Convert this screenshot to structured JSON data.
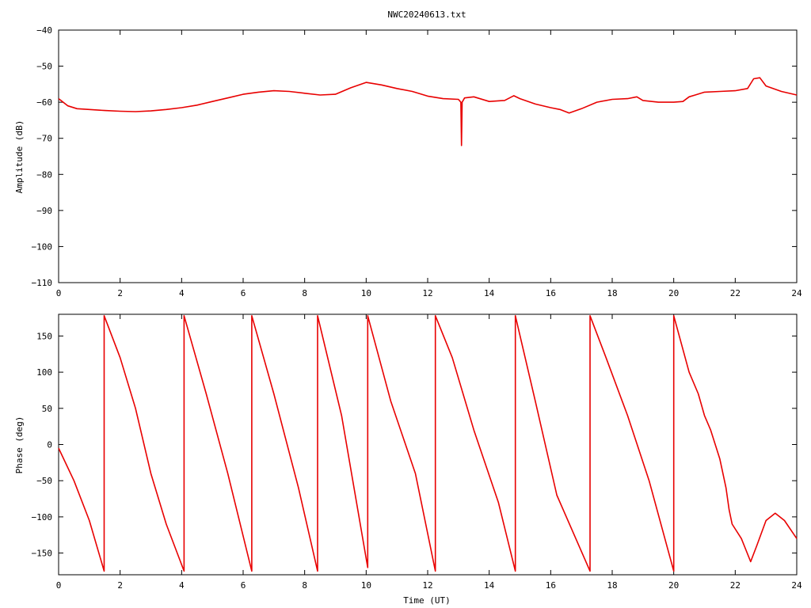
{
  "colors": {
    "trace": "#e80000",
    "frame": "#000000",
    "background": "#ffffff"
  },
  "chart_data": [
    {
      "type": "line",
      "title": "NWC20240613.txt",
      "xlabel": "",
      "ylabel": "Amplitude (dB)",
      "xlim": [
        0,
        24
      ],
      "ylim": [
        -110,
        -40
      ],
      "xticks": [
        0,
        2,
        4,
        6,
        8,
        10,
        12,
        14,
        16,
        18,
        20,
        22,
        24
      ],
      "yticks": [
        -40,
        -50,
        -60,
        -70,
        -80,
        -90,
        -100,
        -110
      ],
      "grid": false,
      "legend": "none",
      "series": [
        {
          "x": [
            0,
            0.3,
            0.6,
            1.0,
            1.5,
            2.0,
            2.5,
            3.0,
            3.5,
            4.0,
            4.5,
            5.0,
            5.5,
            6.0,
            6.5,
            7.0,
            7.5,
            8.0,
            8.5,
            9.0,
            9.5,
            10.0,
            10.5,
            11.0,
            11.5,
            12.0,
            12.5,
            13.0,
            13.08,
            13.1,
            13.12,
            13.2,
            13.5,
            14.0,
            14.5,
            14.8,
            15.0,
            15.5,
            16.0,
            16.3,
            16.6,
            17.0,
            17.5,
            18.0,
            18.5,
            18.8,
            19.0,
            19.5,
            20.0,
            20.3,
            20.5,
            20.7,
            21.0,
            21.5,
            22.0,
            22.4,
            22.6,
            22.8,
            23.0,
            23.5,
            24.0
          ],
          "y": [
            -59,
            -61,
            -61.8,
            -62,
            -62.3,
            -62.5,
            -62.6,
            -62.4,
            -62,
            -61.5,
            -60.8,
            -59.8,
            -58.8,
            -57.8,
            -57.2,
            -56.8,
            -57,
            -57.5,
            -58,
            -57.8,
            -56,
            -54.5,
            -55.2,
            -56.2,
            -57,
            -58.3,
            -59,
            -59.2,
            -60,
            -72,
            -60,
            -58.8,
            -58.5,
            -59.8,
            -59.5,
            -58.2,
            -59,
            -60.5,
            -61.5,
            -62,
            -63,
            -61.8,
            -60,
            -59.2,
            -59,
            -58.5,
            -59.5,
            -60,
            -60,
            -59.8,
            -58.5,
            -58,
            -57.2,
            -57,
            -56.8,
            -56.2,
            -53.5,
            -53.2,
            -55.5,
            -57,
            -58
          ]
        }
      ]
    },
    {
      "type": "line",
      "title": "",
      "xlabel": "Time (UT)",
      "ylabel": "Phase (deg)",
      "xlim": [
        0,
        24
      ],
      "ylim": [
        -180,
        180
      ],
      "xticks": [
        0,
        2,
        4,
        6,
        8,
        10,
        12,
        14,
        16,
        18,
        20,
        22,
        24
      ],
      "yticks": [
        150,
        100,
        50,
        0,
        -50,
        -100,
        -150
      ],
      "grid": false,
      "legend": "none",
      "series": [
        {
          "x": [
            0,
            0.5,
            1.0,
            1.48,
            1.48,
            2.0,
            2.5,
            3.0,
            3.5,
            4.08,
            4.08,
            4.8,
            5.5,
            6.28,
            6.28,
            7.0,
            7.8,
            8.42,
            8.42,
            9.2,
            10.05,
            10.05,
            10.8,
            11.6,
            12.25,
            12.25,
            12.8,
            13.5,
            14.3,
            14.85,
            14.85,
            15.5,
            16.2,
            17.28,
            17.28,
            17.8,
            18.5,
            19.2,
            20.0,
            20.0,
            20.5,
            20.8,
            21.0,
            21.2,
            21.5,
            21.7,
            21.8,
            21.9,
            22.2,
            22.5,
            22.7,
            23.0,
            23.3,
            23.6,
            24.0
          ],
          "y": [
            -5,
            -50,
            -105,
            -175,
            178,
            120,
            50,
            -40,
            -110,
            -175,
            178,
            70,
            -40,
            -175,
            178,
            70,
            -60,
            -175,
            178,
            40,
            -170,
            178,
            60,
            -40,
            -175,
            178,
            120,
            20,
            -80,
            -175,
            178,
            60,
            -70,
            -175,
            178,
            120,
            40,
            -50,
            -175,
            178,
            100,
            70,
            40,
            20,
            -20,
            -60,
            -90,
            -110,
            -130,
            -162,
            -140,
            -105,
            -95,
            -105,
            -130
          ]
        }
      ]
    }
  ]
}
